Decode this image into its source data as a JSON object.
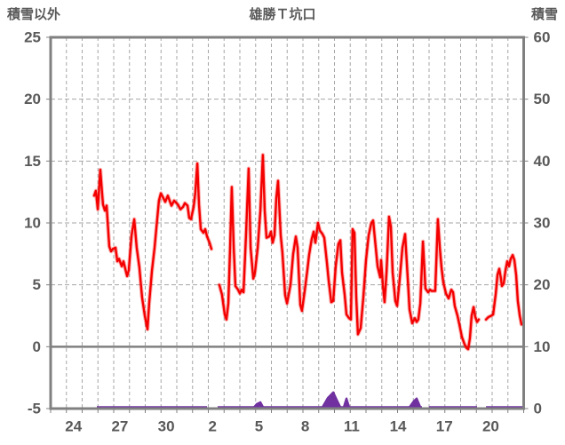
{
  "header": {
    "left_axis_title": "積雪以外",
    "chart_title": "雄勝Ｔ坑口",
    "right_axis_title": "積雪"
  },
  "chart_data": {
    "type": "line",
    "title": "雄勝Ｔ坑口",
    "left_axis": {
      "title": "積雪以外",
      "ticks": [
        25,
        20,
        15,
        10,
        5,
        0,
        -5
      ],
      "range": [
        -5,
        25
      ]
    },
    "right_axis": {
      "title": "積雪",
      "ticks": [
        60,
        50,
        40,
        30,
        20,
        10,
        0
      ],
      "range": [
        0,
        60
      ]
    },
    "x_axis": {
      "tick_labels": [
        "24",
        "27",
        "30",
        "2",
        "5",
        "8",
        "11",
        "14",
        "17",
        "20"
      ],
      "tick_start_day": 1.45,
      "tick_step_days": 2.94,
      "range_days": [
        0,
        30
      ],
      "grid_interval_days": 1
    },
    "grid": {
      "vertical": "dashed daily",
      "horizontal_dashed_at": [
        20,
        15,
        10,
        5
      ],
      "zero_line_at": 0
    },
    "colors": {
      "other_than_snow": "#f40000",
      "snow": "#7030a0",
      "frame": "#808080",
      "grid": "#a6a6a6",
      "text": "#595959"
    },
    "series": [
      {
        "name": "積雪以外",
        "axis": "left",
        "color": "#f40000",
        "segments": [
          [
            [
              2.76,
              12.2
            ],
            [
              2.87,
              12.6
            ],
            [
              2.99,
              11.1
            ],
            [
              3.15,
              14.3
            ],
            [
              3.32,
              11.5
            ],
            [
              3.44,
              11.0
            ],
            [
              3.55,
              11.4
            ],
            [
              3.72,
              8.1
            ],
            [
              3.83,
              7.7
            ],
            [
              3.94,
              7.9
            ],
            [
              4.11,
              8.0
            ],
            [
              4.23,
              6.9
            ],
            [
              4.34,
              7.1
            ],
            [
              4.51,
              6.5
            ],
            [
              4.62,
              6.9
            ],
            [
              4.79,
              6.0
            ],
            [
              4.85,
              5.7
            ],
            [
              4.96,
              6.2
            ],
            [
              5.13,
              9.0
            ],
            [
              5.3,
              10.3
            ],
            [
              5.46,
              8.0
            ],
            [
              5.63,
              6.4
            ],
            [
              5.8,
              4.0
            ],
            [
              5.97,
              2.5
            ],
            [
              6.14,
              1.4
            ],
            [
              6.25,
              3.5
            ],
            [
              6.42,
              6.1
            ],
            [
              6.59,
              8.0
            ],
            [
              6.7,
              9.5
            ],
            [
              6.87,
              11.8
            ],
            [
              6.99,
              12.4
            ],
            [
              7.15,
              12.0
            ],
            [
              7.27,
              11.7
            ],
            [
              7.43,
              12.2
            ],
            [
              7.66,
              11.4
            ],
            [
              7.83,
              11.8
            ],
            [
              8.06,
              11.5
            ],
            [
              8.23,
              11.1
            ],
            [
              8.4,
              11.3
            ],
            [
              8.51,
              11.6
            ],
            [
              8.68,
              11.4
            ],
            [
              8.79,
              10.4
            ],
            [
              8.9,
              10.3
            ],
            [
              9.07,
              11.3
            ],
            [
              9.18,
              12.5
            ],
            [
              9.3,
              14.8
            ],
            [
              9.41,
              11.5
            ],
            [
              9.52,
              9.5
            ],
            [
              9.69,
              9.2
            ],
            [
              9.8,
              9.5
            ],
            [
              9.92,
              8.9
            ],
            [
              10.08,
              8.4
            ],
            [
              10.2,
              7.9
            ]
          ],
          [
            [
              10.7,
              5.0
            ],
            [
              10.87,
              4.2
            ],
            [
              11.04,
              2.6
            ],
            [
              11.15,
              2.2
            ],
            [
              11.27,
              3.5
            ],
            [
              11.38,
              8.0
            ],
            [
              11.49,
              12.9
            ],
            [
              11.61,
              8.0
            ],
            [
              11.72,
              4.9
            ],
            [
              11.89,
              4.6
            ],
            [
              12.0,
              4.3
            ],
            [
              12.11,
              4.6
            ],
            [
              12.23,
              4.4
            ],
            [
              12.39,
              9.0
            ],
            [
              12.56,
              14.4
            ],
            [
              12.68,
              8.0
            ],
            [
              12.85,
              5.5
            ],
            [
              12.96,
              6.0
            ],
            [
              13.13,
              8.0
            ],
            [
              13.3,
              11.0
            ],
            [
              13.46,
              15.5
            ],
            [
              13.58,
              11.0
            ],
            [
              13.69,
              8.8
            ],
            [
              13.86,
              8.9
            ],
            [
              13.97,
              9.3
            ],
            [
              14.08,
              8.4
            ],
            [
              14.2,
              9.0
            ],
            [
              14.31,
              12.0
            ],
            [
              14.42,
              13.4
            ],
            [
              14.59,
              9.0
            ],
            [
              14.7,
              7.6
            ],
            [
              14.87,
              4.2
            ],
            [
              14.99,
              3.5
            ],
            [
              15.21,
              5.0
            ],
            [
              15.38,
              7.5
            ],
            [
              15.55,
              8.9
            ],
            [
              15.66,
              8.0
            ],
            [
              15.83,
              3.4
            ],
            [
              15.94,
              2.9
            ],
            [
              16.11,
              4.5
            ],
            [
              16.28,
              6.2
            ],
            [
              16.39,
              7.4
            ],
            [
              16.56,
              8.7
            ],
            [
              16.68,
              9.3
            ],
            [
              16.79,
              8.4
            ],
            [
              16.96,
              10.0
            ],
            [
              17.07,
              9.4
            ],
            [
              17.24,
              9.1
            ],
            [
              17.35,
              8.8
            ],
            [
              17.52,
              6.8
            ],
            [
              17.63,
              5.4
            ],
            [
              17.8,
              3.6
            ],
            [
              17.92,
              3.7
            ],
            [
              18.08,
              6.5
            ],
            [
              18.25,
              8.3
            ],
            [
              18.37,
              8.6
            ],
            [
              18.48,
              6.0
            ],
            [
              18.65,
              4.2
            ],
            [
              18.76,
              2.6
            ],
            [
              18.93,
              2.3
            ],
            [
              19.04,
              2.2
            ],
            [
              19.15,
              9.5
            ],
            [
              19.27,
              9.2
            ],
            [
              19.38,
              4.0
            ],
            [
              19.49,
              1.0
            ],
            [
              19.66,
              1.5
            ],
            [
              19.83,
              4.0
            ],
            [
              20.0,
              7.0
            ],
            [
              20.17,
              9.0
            ],
            [
              20.34,
              10.0
            ],
            [
              20.45,
              10.2
            ],
            [
              20.62,
              8.0
            ],
            [
              20.73,
              6.5
            ],
            [
              20.9,
              5.6
            ],
            [
              20.96,
              7.0
            ],
            [
              21.07,
              5.0
            ],
            [
              21.18,
              3.6
            ],
            [
              21.3,
              6.0
            ],
            [
              21.46,
              10.5
            ],
            [
              21.58,
              9.7
            ],
            [
              21.69,
              6.0
            ],
            [
              21.86,
              3.7
            ],
            [
              21.97,
              3.3
            ],
            [
              22.14,
              5.5
            ],
            [
              22.31,
              8.0
            ],
            [
              22.48,
              9.1
            ],
            [
              22.65,
              5.5
            ],
            [
              22.76,
              3.0
            ],
            [
              22.93,
              1.9
            ],
            [
              23.1,
              2.3
            ],
            [
              23.21,
              2.0
            ],
            [
              23.32,
              2.2
            ],
            [
              23.44,
              3.5
            ],
            [
              23.61,
              8.5
            ],
            [
              23.77,
              4.7
            ],
            [
              23.94,
              4.4
            ],
            [
              24.06,
              4.6
            ],
            [
              24.17,
              4.5
            ],
            [
              24.39,
              4.5
            ],
            [
              24.56,
              10.3
            ],
            [
              24.68,
              8.0
            ],
            [
              24.79,
              6.4
            ],
            [
              24.9,
              5.2
            ],
            [
              25.07,
              4.3
            ],
            [
              25.24,
              3.9
            ],
            [
              25.41,
              4.6
            ],
            [
              25.52,
              4.4
            ],
            [
              25.63,
              3.3
            ],
            [
              25.8,
              2.5
            ],
            [
              25.92,
              1.8
            ],
            [
              26.08,
              0.8
            ],
            [
              26.25,
              0.2
            ],
            [
              26.37,
              -0.1
            ],
            [
              26.48,
              -0.2
            ],
            [
              26.59,
              0.7
            ],
            [
              26.7,
              2.5
            ],
            [
              26.82,
              3.2
            ],
            [
              26.93,
              2.4
            ],
            [
              27.04,
              2.0
            ],
            [
              27.15,
              2.2
            ]
          ],
          [
            [
              27.61,
              2.2
            ],
            [
              27.77,
              2.4
            ],
            [
              27.94,
              2.5
            ],
            [
              28.06,
              2.6
            ],
            [
              28.23,
              4.3
            ],
            [
              28.34,
              5.8
            ],
            [
              28.45,
              6.3
            ],
            [
              28.56,
              5.5
            ],
            [
              28.62,
              4.9
            ],
            [
              28.73,
              5.1
            ],
            [
              28.85,
              6.2
            ],
            [
              28.96,
              6.9
            ],
            [
              29.07,
              6.5
            ],
            [
              29.18,
              7.1
            ],
            [
              29.3,
              7.4
            ],
            [
              29.41,
              7.0
            ],
            [
              29.52,
              5.8
            ],
            [
              29.63,
              3.7
            ],
            [
              29.75,
              2.5
            ],
            [
              29.86,
              1.8
            ]
          ]
        ]
      },
      {
        "name": "積雪",
        "axis": "right",
        "color": "#7030a0",
        "segments": [
          [
            [
              2.93,
              0
            ],
            [
              9.92,
              0
            ]
          ],
          [
            [
              10.59,
              0
            ],
            [
              12.9,
              0
            ],
            [
              13.07,
              0.5
            ],
            [
              13.3,
              0.8
            ],
            [
              13.47,
              0
            ],
            [
              17.24,
              0
            ],
            [
              17.58,
              1.5
            ],
            [
              17.92,
              2.4
            ],
            [
              18.14,
              1.2
            ],
            [
              18.37,
              0
            ],
            [
              18.59,
              0
            ],
            [
              18.76,
              1.4
            ],
            [
              18.93,
              0
            ],
            [
              22.76,
              0
            ],
            [
              23.04,
              1.0
            ],
            [
              23.21,
              1.4
            ],
            [
              23.44,
              0
            ],
            [
              23.55,
              0
            ]
          ],
          [
            [
              23.99,
              0
            ],
            [
              27.04,
              0
            ]
          ],
          [
            [
              27.61,
              0
            ],
            [
              30,
              0
            ]
          ]
        ]
      }
    ]
  }
}
